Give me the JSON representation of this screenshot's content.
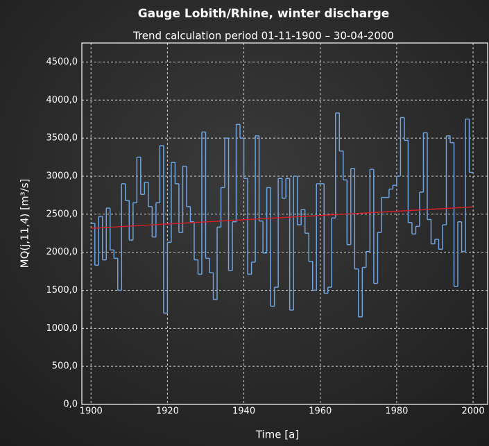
{
  "chart_data": {
    "type": "step",
    "title": "Gauge Lobith/Rhine, winter discharge",
    "subtitle": "Trend calculation period 01-11-1900 – 30-04-2000",
    "x_label": "Time [a]",
    "y_label": "MQ(j,11,4) [m³/s]",
    "xlim": [
      1897.6,
      2003.8
    ],
    "xticks": [
      1900,
      1920,
      1940,
      1960,
      1980,
      2000
    ],
    "ylim": [
      0,
      4750
    ],
    "yticks": [
      {
        "value": 0,
        "label": "0,0"
      },
      {
        "value": 500,
        "label": "500,0"
      },
      {
        "value": 1000,
        "label": "1000,0"
      },
      {
        "value": 1500,
        "label": "1500,0"
      },
      {
        "value": 2000,
        "label": "2000,0"
      },
      {
        "value": 2500,
        "label": "2500,0"
      },
      {
        "value": 3000,
        "label": "3000,0"
      },
      {
        "value": 3500,
        "label": "3500,0"
      },
      {
        "value": 4000,
        "label": "4000,0"
      },
      {
        "value": 4500,
        "label": "4500,0"
      }
    ],
    "grid": true,
    "series": [
      {
        "color": "#6fa3e0",
        "x": [
          1900,
          1901,
          1902,
          1903,
          1904,
          1905,
          1906,
          1907,
          1908,
          1909,
          1910,
          1911,
          1912,
          1913,
          1914,
          1915,
          1916,
          1917,
          1918,
          1919,
          1920,
          1921,
          1922,
          1923,
          1924,
          1925,
          1926,
          1927,
          1928,
          1929,
          1930,
          1931,
          1932,
          1933,
          1934,
          1935,
          1936,
          1937,
          1938,
          1939,
          1940,
          1941,
          1942,
          1943,
          1944,
          1945,
          1946,
          1947,
          1948,
          1949,
          1950,
          1951,
          1952,
          1953,
          1954,
          1955,
          1956,
          1957,
          1958,
          1959,
          1960,
          1961,
          1962,
          1963,
          1964,
          1965,
          1966,
          1967,
          1968,
          1969,
          1970,
          1971,
          1972,
          1973,
          1974,
          1975,
          1976,
          1977,
          1978,
          1979,
          1980,
          1981,
          1982,
          1983,
          1984,
          1985,
          1986,
          1987,
          1988,
          1989,
          1990,
          1991,
          1992,
          1993,
          1994,
          1995,
          1996,
          1997,
          1998,
          1999
        ],
        "values": [
          2380,
          1830,
          2470,
          1900,
          2580,
          2030,
          1920,
          1500,
          2900,
          2680,
          2160,
          2650,
          3250,
          2760,
          2920,
          2600,
          2200,
          2650,
          3400,
          1200,
          2130,
          3180,
          2900,
          2260,
          3130,
          2600,
          2400,
          1900,
          1710,
          3580,
          1920,
          1730,
          1380,
          2330,
          2850,
          3500,
          1760,
          2400,
          3680,
          3500,
          2970,
          1710,
          1870,
          3530,
          2410,
          1990,
          2850,
          1290,
          1540,
          2970,
          2710,
          2970,
          1240,
          3000,
          2360,
          2560,
          2250,
          1880,
          1500,
          2900,
          2900,
          1460,
          1540,
          2450,
          3830,
          3330,
          2950,
          2100,
          3100,
          1780,
          1150,
          1800,
          2010,
          3090,
          1590,
          2260,
          2720,
          2720,
          2830,
          2880,
          3000,
          3770,
          3470,
          2390,
          2240,
          2340,
          2790,
          3570,
          2430,
          2110,
          2170,
          2040,
          2360,
          3530,
          3440,
          1550,
          2400,
          2010,
          3750,
          3050
        ]
      },
      {
        "color": "#d0202a",
        "x": [
          1900,
          2000
        ],
        "values": [
          2315,
          2595
        ]
      }
    ]
  }
}
